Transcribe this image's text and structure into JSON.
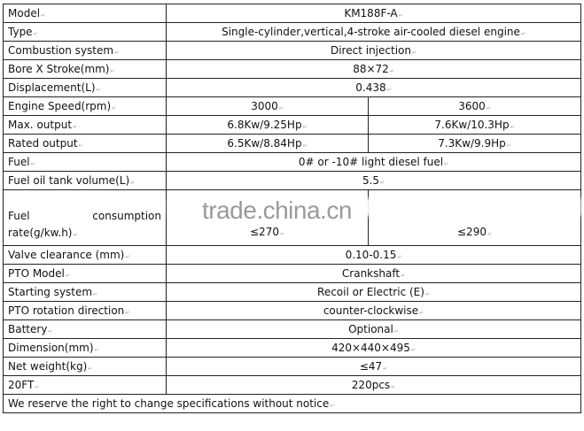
{
  "watermark": "trade.china.cn",
  "rows": [
    {
      "label": "Model",
      "value": "KM188F-A"
    },
    {
      "label": "Type",
      "value": "Single-cylinder,vertical,4-stroke air-cooled diesel engine"
    },
    {
      "label": "Combustion system",
      "value": "Direct injection"
    },
    {
      "label": "Bore X Stroke(mm)",
      "value": "88×72"
    },
    {
      "label": "Displacement(L)",
      "value": "0.438"
    },
    {
      "label": "Engine Speed(rpm)",
      "value_a": "3000",
      "value_b": "3600"
    },
    {
      "label": "Max. output",
      "value_a": "6.8Kw/9.25Hp",
      "value_b": "7.6Kw/10.3Hp"
    },
    {
      "label": "Rated output",
      "value_a": "6.5Kw/8.84Hp",
      "value_b": "7.3Kw/9.9Hp"
    },
    {
      "label": "Fuel",
      "value": "0# or -10# light diesel fuel"
    },
    {
      "label": "Fuel oil tank volume(L)",
      "value": "5.5"
    },
    {
      "label_1": "Fuel",
      "label_2": "consumption",
      "label_3": "rate(g/kw.h)",
      "value_a": "≤270",
      "value_b": "≤290"
    },
    {
      "label": "Valve clearance (mm)",
      "value": "0.10-0.15"
    },
    {
      "label": "PTO Model",
      "value": "Crankshaft"
    },
    {
      "label": "Starting system",
      "value": "Recoil or Electric (E)"
    },
    {
      "label": "PTO rotation direction",
      "value": "counter-clockwise"
    },
    {
      "label": "Battery",
      "value": "Optional"
    },
    {
      "label": "Dimension(mm)",
      "value": "420×440×495"
    },
    {
      "label": "Net weight(kg)",
      "value": "≤47"
    },
    {
      "label": "20FT",
      "value": "220pcs"
    }
  ],
  "footer_note": "We reserve the right to change specifications without notice"
}
